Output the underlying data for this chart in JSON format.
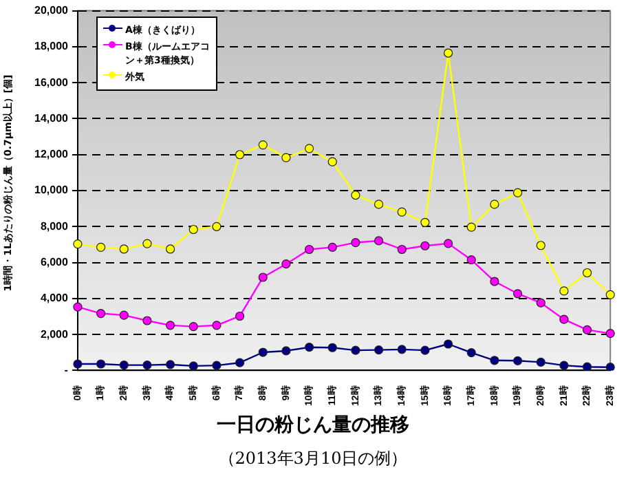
{
  "chart_data": {
    "type": "line",
    "title": "一日の粉じん量の推移",
    "subtitle": "（2013年3月10日の例）",
    "ylabel": "1時間・1Lあたりの粉じん量（0.7μm以上）[個]",
    "categories": [
      "0時",
      "1時",
      "2時",
      "3時",
      "4時",
      "5時",
      "6時",
      "7時",
      "8時",
      "9時",
      "10時",
      "11時",
      "12時",
      "13時",
      "14時",
      "15時",
      "16時",
      "17時",
      "18時",
      "19時",
      "20時",
      "21時",
      "22時",
      "23時"
    ],
    "series": [
      {
        "name": "A棟（きくばり）",
        "color": "#000080",
        "values": [
          360,
          360,
          300,
          300,
          330,
          250,
          280,
          430,
          1010,
          1090,
          1290,
          1270,
          1120,
          1140,
          1170,
          1120,
          1470,
          990,
          560,
          540,
          460,
          280,
          200,
          180
        ]
      },
      {
        "name": "B棟（ルームエアコン＋第3種換気）",
        "color": "#ff00ff",
        "values": [
          3530,
          3170,
          3070,
          2770,
          2510,
          2440,
          2510,
          3020,
          5180,
          5920,
          6730,
          6850,
          7110,
          7210,
          6730,
          6930,
          7060,
          6150,
          4950,
          4270,
          3760,
          2840,
          2260,
          2060
        ]
      },
      {
        "name": "外気",
        "color": "#ffff00",
        "values": [
          7030,
          6850,
          6750,
          7050,
          6750,
          7840,
          8000,
          12000,
          12540,
          11830,
          12340,
          11600,
          9750,
          9240,
          8810,
          8230,
          17650,
          7970,
          9240,
          9880,
          6950,
          4420,
          5430,
          4210
        ]
      }
    ],
    "ylim": [
      0,
      20000
    ],
    "yticks": [
      {
        "value": 0,
        "label": "-"
      },
      {
        "value": 2000,
        "label": "2,000"
      },
      {
        "value": 4000,
        "label": "4,000"
      },
      {
        "value": 6000,
        "label": "6,000"
      },
      {
        "value": 8000,
        "label": "8,000"
      },
      {
        "value": 10000,
        "label": "10,000"
      },
      {
        "value": 12000,
        "label": "12,000"
      },
      {
        "value": 14000,
        "label": "14,000"
      },
      {
        "value": 16000,
        "label": "16,000"
      },
      {
        "value": 18000,
        "label": "18,000"
      },
      {
        "value": 20000,
        "label": "20,000"
      }
    ],
    "grid": "y",
    "legend": "top left",
    "marker": "circle",
    "line_style": "solid"
  }
}
